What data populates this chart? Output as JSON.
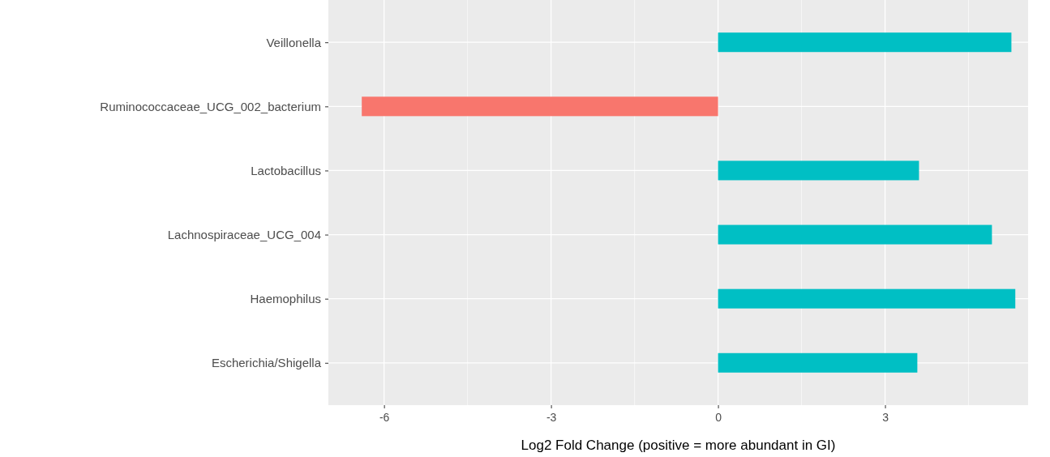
{
  "chart_data": {
    "type": "bar",
    "orientation": "horizontal",
    "xlabel": "Log2 Fold Change (positive = more abundant in GI)",
    "categories": [
      "Veillonella",
      "Ruminococcaceae_UCG_002_bacterium",
      "Lactobacillus",
      "Lachnospiraceae_UCG_004",
      "Haemophilus",
      "Escherichia/Shigella"
    ],
    "values": [
      5.27,
      -6.4,
      3.61,
      4.92,
      5.34,
      3.58
    ],
    "colors": [
      "#00bfc4",
      "#f8766d",
      "#00bfc4",
      "#00bfc4",
      "#00bfc4",
      "#00bfc4"
    ],
    "xlim": [
      -7,
      5.57
    ],
    "xticks": [
      -6,
      -3,
      0,
      3
    ],
    "grid": true
  }
}
